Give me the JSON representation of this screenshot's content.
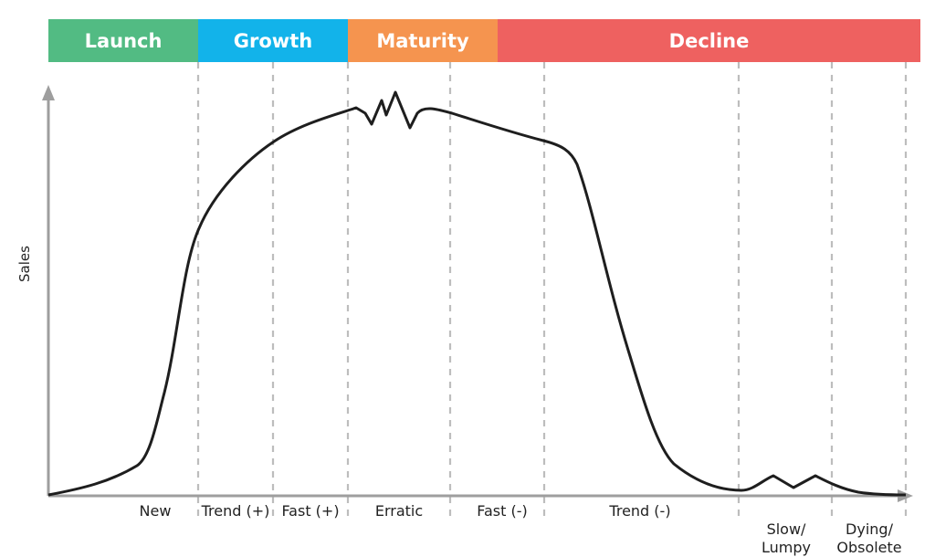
{
  "phases": [
    {
      "label": "Launch",
      "color": "#52bb83"
    },
    {
      "label": "Growth",
      "color": "#12b3ea"
    },
    {
      "label": "Maturity",
      "color": "#f5944f"
    },
    {
      "label": "Decline",
      "color": "#ee6160"
    }
  ],
  "stages": [
    {
      "label": "New"
    },
    {
      "label": "Trend (+)"
    },
    {
      "label": "Fast (+)"
    },
    {
      "label": "Erratic"
    },
    {
      "label": "Fast (-)"
    },
    {
      "label": "Trend (-)"
    },
    {
      "label": "Slow/\nLumpy"
    },
    {
      "label": "Dying/\nObsolete"
    }
  ],
  "axis": {
    "y_label": "Sales"
  },
  "colors": {
    "axis": "#9e9e9e",
    "curve": "#1e1e1e",
    "divider": "#bdbdbd"
  }
}
